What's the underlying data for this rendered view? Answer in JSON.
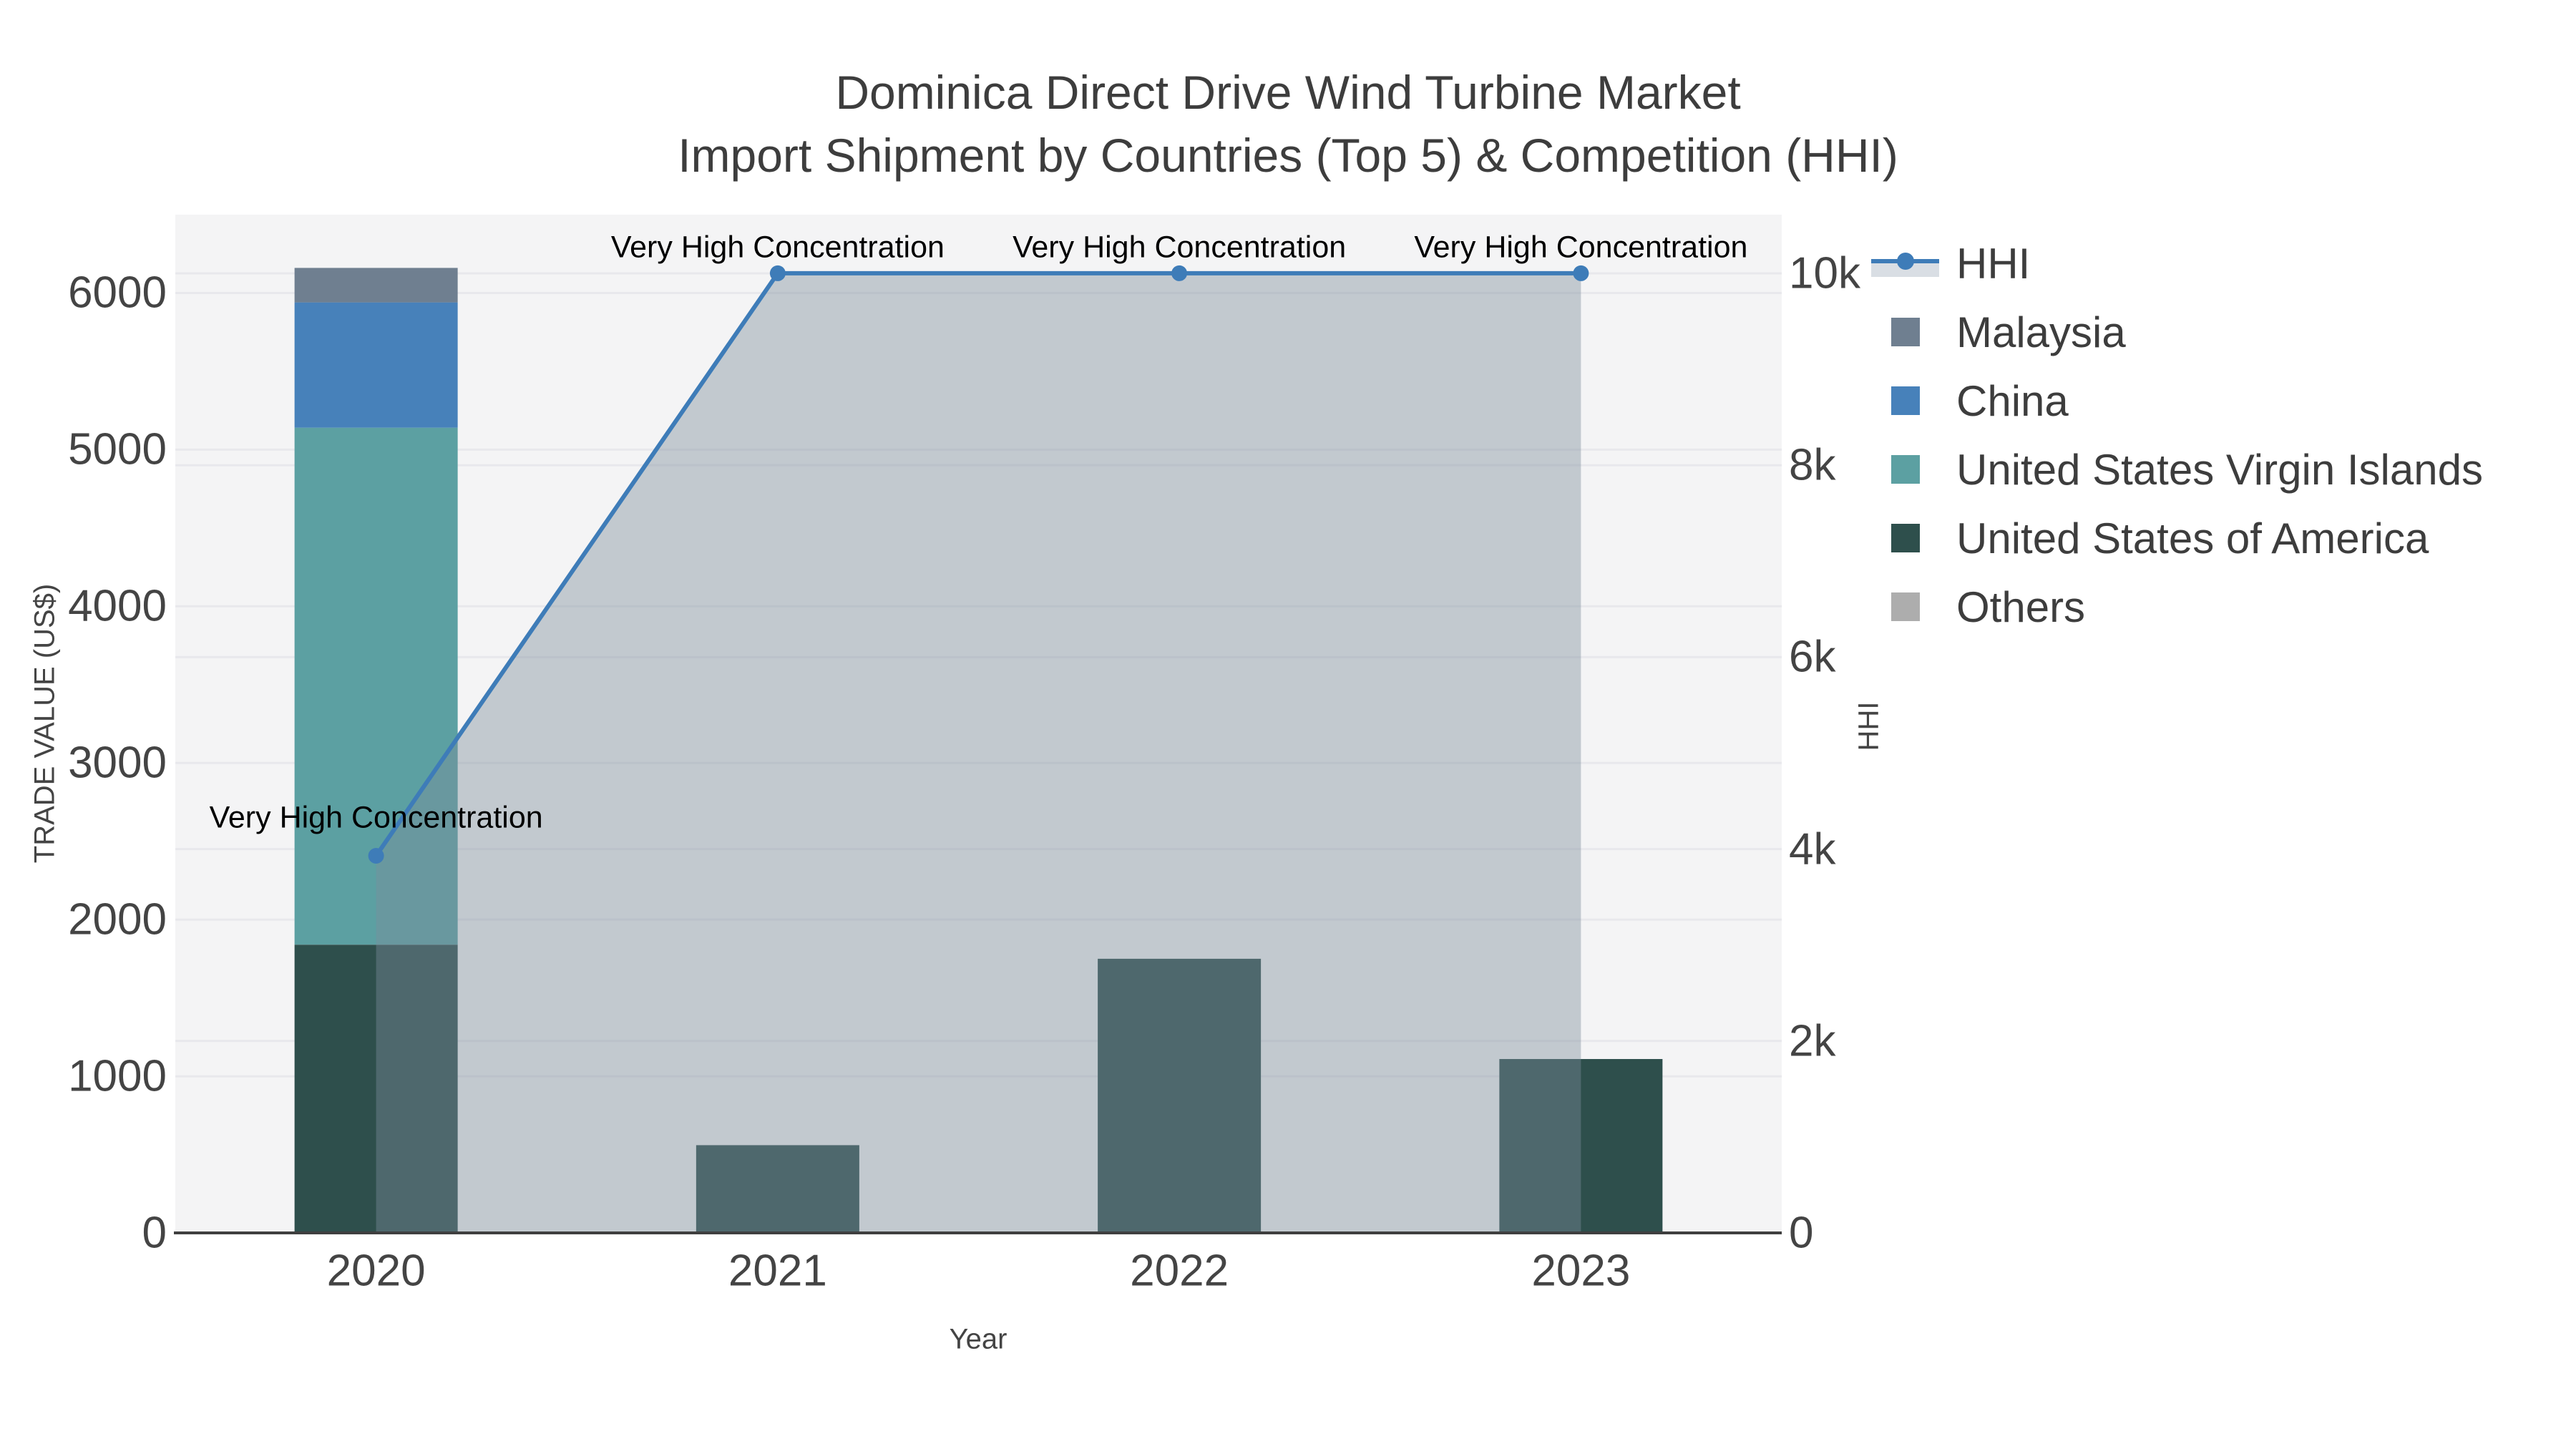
{
  "title": {
    "line1": "Dominica Direct Drive Wind Turbine Market",
    "line2": "Import Shipment by Countries (Top 5) & Competition (HHI)"
  },
  "legend": {
    "items": [
      {
        "label": "HHI",
        "type": "line",
        "color": "#3E7CB8",
        "fill": "#D9DEE4"
      },
      {
        "label": "Malaysia",
        "type": "square",
        "color": "#6F7F90"
      },
      {
        "label": "China",
        "type": "square",
        "color": "#4781BA"
      },
      {
        "label": "United States Virgin Islands",
        "type": "square",
        "color": "#5CA0A2"
      },
      {
        "label": "United States of America",
        "type": "square",
        "color": "#2E4F4C"
      },
      {
        "label": "Others",
        "type": "square",
        "color": "#ADADAD"
      }
    ]
  },
  "chart_data": {
    "type": "bar",
    "subtype": "stacked-bar-with-line",
    "categories": [
      "2020",
      "2021",
      "2022",
      "2023"
    ],
    "bar_series": [
      {
        "name": "United States of America",
        "color": "#2E4F4C",
        "values": [
          1840,
          560,
          1750,
          1110
        ]
      },
      {
        "name": "United States Virgin Islands",
        "color": "#5CA0A2",
        "values": [
          3300,
          0,
          0,
          0
        ]
      },
      {
        "name": "China",
        "color": "#4781BA",
        "values": [
          800,
          0,
          0,
          0
        ]
      },
      {
        "name": "Malaysia",
        "color": "#6F7F90",
        "values": [
          220,
          0,
          0,
          0
        ]
      },
      {
        "name": "Others",
        "color": "#ADADAD",
        "values": [
          0,
          0,
          0,
          0
        ]
      }
    ],
    "line_series": {
      "name": "HHI",
      "color": "#3E7CB8",
      "area_fill": "rgba(125,140,155,0.42)",
      "values": [
        3930,
        10000,
        10000,
        10000
      ]
    },
    "annotations": [
      {
        "text": "Very High Concentration",
        "category": "2020"
      },
      {
        "text": "Very High Concentration",
        "category": "2021"
      },
      {
        "text": "Very High Concentration",
        "category": "2022"
      },
      {
        "text": "Very High Concentration",
        "category": "2023"
      }
    ],
    "x_axis": {
      "title": "Year",
      "ticks": [
        "2020",
        "2021",
        "2022",
        "2023"
      ]
    },
    "y_left": {
      "title": "TRADE VALUE (US$)",
      "ticks": [
        0,
        1000,
        2000,
        3000,
        4000,
        5000,
        6000
      ],
      "max": 6500
    },
    "y_right": {
      "title": "HHI",
      "ticks": [
        {
          "label": "0",
          "value": 0
        },
        {
          "label": "2k",
          "value": 2000
        },
        {
          "label": "4k",
          "value": 4000
        },
        {
          "label": "6k",
          "value": 6000
        },
        {
          "label": "8k",
          "value": 8000
        },
        {
          "label": "10k",
          "value": 10000
        }
      ],
      "max": 10611
    },
    "plot_bg": "#F4F4F5",
    "grid_color": "#E8E8EC",
    "axis_line_color": "#3F3F3F"
  }
}
